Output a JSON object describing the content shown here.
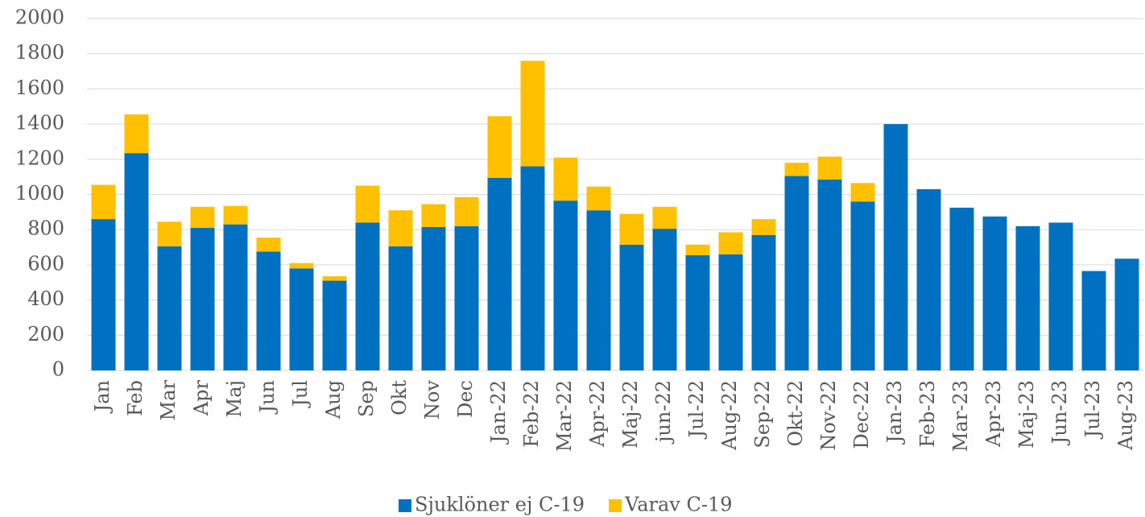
{
  "chart_data": {
    "type": "stacked-bar",
    "categories": [
      "Jan",
      "Feb",
      "Mar",
      "Apr",
      "Maj",
      "Jun",
      "Jul",
      "Aug",
      "Sep",
      "Okt",
      "Nov",
      "Dec",
      "Jan-22",
      "Feb-22",
      "Mar-22",
      "Apr-22",
      "Maj-22",
      "jun-22",
      "Jul-22",
      "Aug-22",
      "Sep-22",
      "Okt-22",
      "Nov-22",
      "Dec-22",
      "Jan-23",
      "Feb-23",
      "Mar-23",
      "Apr-23",
      "Maj-23",
      "Jun-23",
      "Jul-23",
      "Aug-23"
    ],
    "series": [
      {
        "name": "Sjuklöner ej C-19",
        "color": "#0070c0",
        "values": [
          860,
          1235,
          705,
          810,
          830,
          675,
          580,
          510,
          840,
          705,
          815,
          820,
          1095,
          1160,
          965,
          910,
          715,
          805,
          655,
          660,
          770,
          1105,
          1085,
          960,
          1400,
          1030,
          925,
          875,
          820,
          840,
          565,
          635
        ]
      },
      {
        "name": "Varav C-19",
        "color": "#ffc000",
        "values": [
          195,
          220,
          140,
          120,
          105,
          80,
          30,
          25,
          210,
          205,
          130,
          165,
          350,
          600,
          245,
          135,
          175,
          125,
          60,
          125,
          90,
          75,
          130,
          105,
          null,
          null,
          null,
          null,
          null,
          null,
          null,
          null
        ]
      }
    ],
    "ylim": [
      0,
      2000
    ],
    "yticks": [
      0,
      200,
      400,
      600,
      800,
      1000,
      1200,
      1400,
      1600,
      1800,
      2000
    ],
    "grid": true,
    "legend": "bottom"
  }
}
